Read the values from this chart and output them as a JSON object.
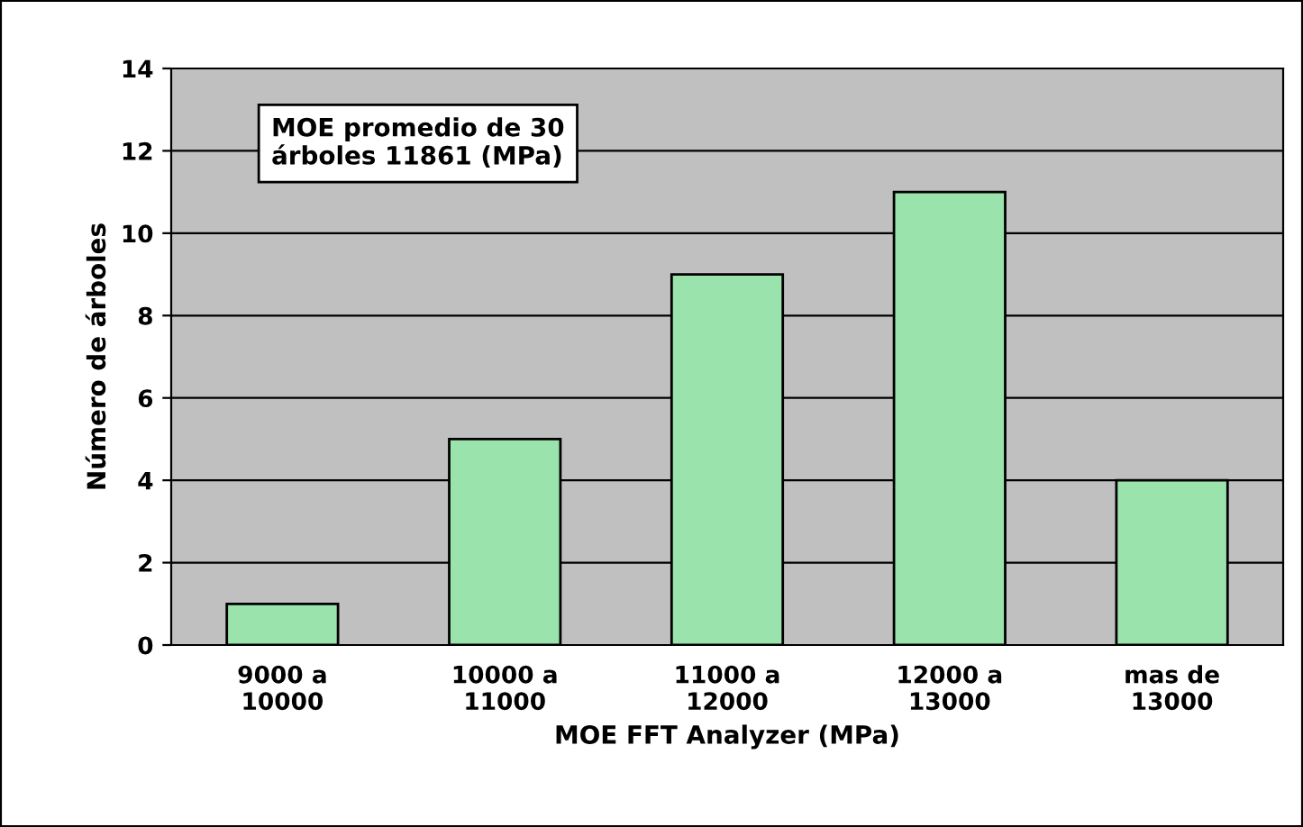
{
  "chart_data": {
    "type": "bar",
    "xlabel": "MOE FFT Analyzer (MPa)",
    "ylabel": "Número de árboles",
    "categories": [
      "9000 a\n10000",
      "10000 a\n11000",
      "11000 a\n12000",
      "12000 a\n13000",
      "mas de\n13000"
    ],
    "values": [
      1,
      5,
      9,
      11,
      4
    ],
    "color": "#9be3ad",
    "ylim": [
      0,
      14
    ],
    "yticks": [
      0,
      2,
      4,
      6,
      8,
      10,
      12,
      14
    ],
    "grid": "y",
    "annotations": [
      "MOE promedio de 30\nárboles 11861 (MPa)"
    ]
  }
}
